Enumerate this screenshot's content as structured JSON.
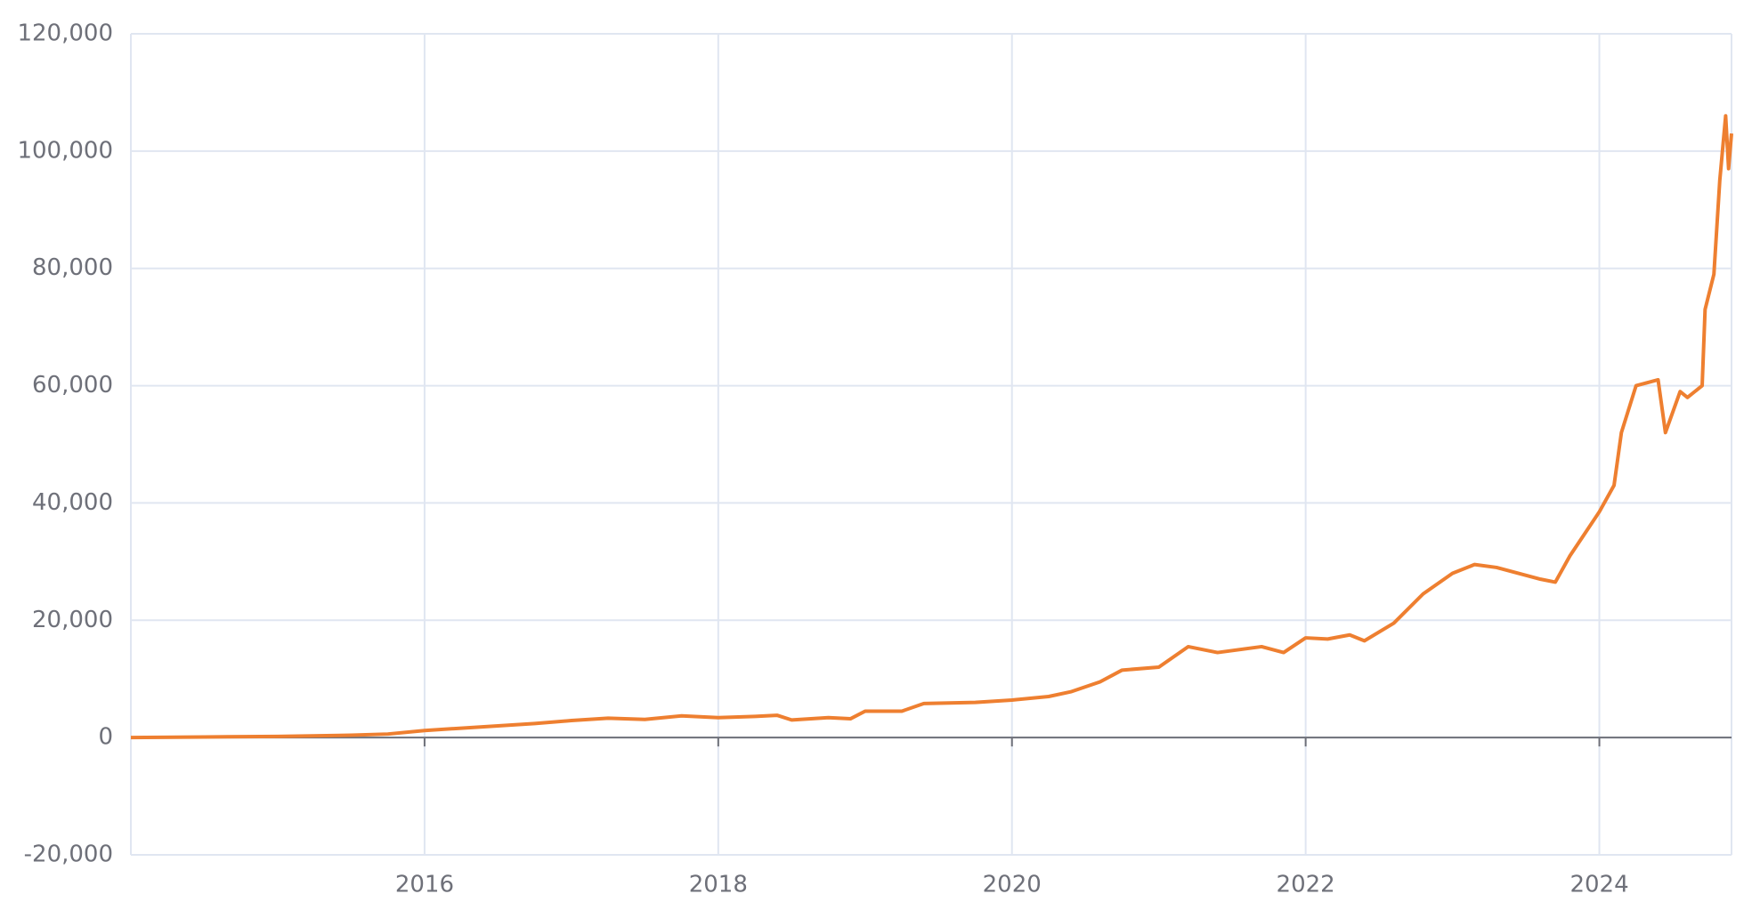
{
  "chart_data": {
    "type": "line",
    "x": [
      2014.0,
      2014.5,
      2015.0,
      2015.5,
      2015.75,
      2016.0,
      2016.25,
      2016.5,
      2016.75,
      2017.0,
      2017.25,
      2017.5,
      2017.75,
      2018.0,
      2018.25,
      2018.4,
      2018.5,
      2018.75,
      2018.9,
      2019.0,
      2019.25,
      2019.4,
      2019.75,
      2020.0,
      2020.25,
      2020.4,
      2020.6,
      2020.75,
      2021.0,
      2021.2,
      2021.4,
      2021.7,
      2021.85,
      2022.0,
      2022.15,
      2022.3,
      2022.4,
      2022.6,
      2022.8,
      2023.0,
      2023.15,
      2023.3,
      2023.6,
      2023.7,
      2023.8,
      2024.0,
      2024.1,
      2024.15,
      2024.25,
      2024.4,
      2024.45,
      2024.55,
      2024.6,
      2024.7,
      2024.72,
      2024.78,
      2024.82,
      2024.86,
      2024.88,
      2024.9
    ],
    "series": [
      {
        "color": "#ee7f30",
        "values": [
          0,
          100,
          200,
          400,
          600,
          1200,
          1600,
          2000,
          2400,
          2900,
          3300,
          3100,
          3700,
          3400,
          3600,
          3800,
          3000,
          3400,
          3200,
          4500,
          4500,
          5800,
          6000,
          6400,
          7000,
          7800,
          9500,
          11500,
          12000,
          15500,
          14500,
          15500,
          14500,
          17000,
          16800,
          17500,
          16500,
          19500,
          24500,
          28000,
          29500,
          29000,
          27000,
          26500,
          31000,
          38500,
          43000,
          52000,
          60000,
          61000,
          52000,
          59000,
          58000,
          60000,
          73000,
          79000,
          95000,
          106000,
          97000,
          103000
        ]
      }
    ],
    "xlim": [
      2014.0,
      2024.9
    ],
    "xticks": [
      2016,
      2018,
      2020,
      2022,
      2024
    ],
    "ylim": [
      -20000,
      120000
    ],
    "yticks": [
      {
        "value": -20000,
        "label": "-20,000"
      },
      0,
      {
        "value": 20000,
        "label": "20,000"
      },
      {
        "value": 40000,
        "label": "40,000"
      },
      {
        "value": 60000,
        "label": "60,000"
      },
      {
        "value": 80000,
        "label": "80,000"
      },
      {
        "value": 100000,
        "label": "100,000"
      },
      {
        "value": 120000,
        "label": "120,000"
      }
    ],
    "grid": true
  }
}
